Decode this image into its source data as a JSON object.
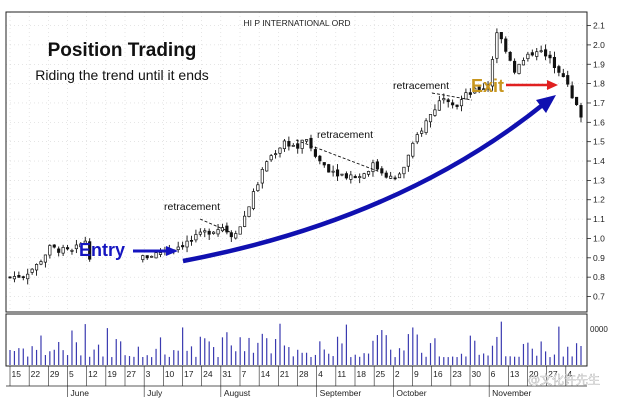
{
  "chart_data": {
    "type": "candlestick",
    "title": "Position Trading",
    "subtitle": "Riding the trend until it ends",
    "instrument": "HI P INTERNATIONAL ORD",
    "watermark": "@文化许先生",
    "ylim": [
      0.62,
      2.17
    ],
    "y_ticks": [
      0.7,
      0.8,
      0.9,
      1.0,
      1.1,
      1.2,
      1.3,
      1.4,
      1.5,
      1.6,
      1.7,
      1.8,
      1.9,
      2.0,
      2.1
    ],
    "volume_label": "0000",
    "x_day_ticks": [
      "15",
      "22",
      "29",
      "5",
      "12",
      "19",
      "27",
      "3",
      "10",
      "17",
      "24",
      "31",
      "7",
      "14",
      "21",
      "28",
      "4",
      "11",
      "18",
      "25",
      "2",
      "9",
      "16",
      "23",
      "30",
      "6",
      "13",
      "20",
      "27",
      "4"
    ],
    "month_labels": [
      "June",
      "July",
      "August",
      "September",
      "October",
      "November"
    ],
    "n_bars": 130,
    "price_path": [
      [
        0,
        0.8
      ],
      [
        3,
        0.81
      ],
      [
        6,
        0.86
      ],
      [
        9,
        0.95
      ],
      [
        14,
        0.93
      ],
      [
        17,
        0.99
      ],
      [
        18,
        0.91
      ],
      [
        30,
        0.9
      ],
      [
        34,
        0.93
      ],
      [
        38,
        0.96
      ],
      [
        41,
        0.99
      ],
      [
        44,
        1.03
      ],
      [
        48,
        1.06
      ],
      [
        50,
        1.02
      ],
      [
        52,
        1.06
      ],
      [
        55,
        1.23
      ],
      [
        58,
        1.4
      ],
      [
        62,
        1.5
      ],
      [
        65,
        1.47
      ],
      [
        67,
        1.52
      ],
      [
        68,
        1.45
      ],
      [
        70,
        1.4
      ],
      [
        72,
        1.36
      ],
      [
        75,
        1.33
      ],
      [
        79,
        1.32
      ],
      [
        82,
        1.38
      ],
      [
        85,
        1.33
      ],
      [
        87,
        1.3
      ],
      [
        89,
        1.37
      ],
      [
        92,
        1.53
      ],
      [
        95,
        1.64
      ],
      [
        98,
        1.74
      ],
      [
        101,
        1.69
      ],
      [
        103,
        1.74
      ],
      [
        106,
        1.77
      ],
      [
        108,
        1.79
      ],
      [
        110,
        2.07
      ],
      [
        112,
        1.98
      ],
      [
        114,
        1.87
      ],
      [
        117,
        1.94
      ],
      [
        119,
        1.98
      ],
      [
        122,
        1.92
      ],
      [
        125,
        1.85
      ],
      [
        127,
        1.72
      ],
      [
        129,
        1.64
      ]
    ],
    "annotations": [
      {
        "text": "retracement"
      },
      {
        "text": "retracement"
      },
      {
        "text": "retracement"
      },
      {
        "text": "Entry"
      },
      {
        "text": "Exit"
      }
    ]
  },
  "colors": {
    "candle": "#111111",
    "trend_arrow": "#1010b0",
    "entry": "#1515c0",
    "exit_text": "#c8961e",
    "exit_arrow": "#e02020",
    "grid": "#cccccc",
    "axis": "#222222",
    "volume": "#3a3ab0"
  }
}
